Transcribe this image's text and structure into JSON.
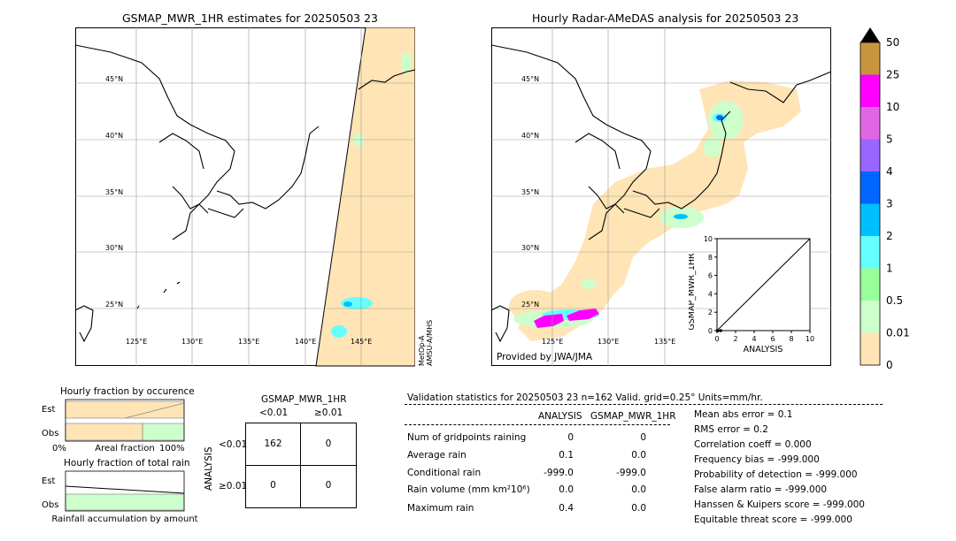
{
  "left_map": {
    "title": "GSMAP_MWR_1HR estimates for 20250503 23",
    "lat_labels": [
      "45°N",
      "40°N",
      "35°N",
      "30°N",
      "25°N"
    ],
    "lon_labels": [
      "125°E",
      "130°E",
      "135°E",
      "140°E",
      "145°E"
    ],
    "satellite_note": "MetOp-A\nAMSU-A/MHS"
  },
  "right_map": {
    "title": "Hourly Radar-AMeDAS analysis for 20250503 23",
    "lat_labels": [
      "45°N",
      "40°N",
      "35°N",
      "30°N",
      "25°N"
    ],
    "lon_labels": [
      "125°E",
      "130°E",
      "135°E"
    ],
    "provider": "Provided by JWA/JMA"
  },
  "colorbar": {
    "labels": [
      "50",
      "25",
      "10",
      "5",
      "4",
      "3",
      "2",
      "1",
      "0.5",
      "0.01",
      "0"
    ],
    "colors": [
      "#c8963c",
      "#ff00ff",
      "#e066e6",
      "#9966ff",
      "#0066ff",
      "#00bfff",
      "#66ffff",
      "#99ff99",
      "#ccffcc",
      "#ffe4b5"
    ]
  },
  "chart_data": [
    {
      "type": "scatter",
      "title": "",
      "xlabel": "ANALYSIS",
      "ylabel": "GSMAP_MWR_1HR",
      "xlim": [
        0,
        10
      ],
      "ylim": [
        0,
        10
      ],
      "xticks": [
        "0",
        "2",
        "4",
        "6",
        "8",
        "10"
      ],
      "yticks": [
        "0",
        "2",
        "4",
        "6",
        "8",
        "10"
      ],
      "points": [
        [
          0.1,
          0.0
        ],
        [
          0.4,
          0.0
        ],
        [
          0.05,
          0.0
        ]
      ],
      "reference_line": [
        [
          0,
          0
        ],
        [
          10,
          10
        ]
      ]
    },
    {
      "type": "bar",
      "title": "Hourly fraction by occurence",
      "categories": [
        "Est",
        "Obs"
      ],
      "xlabel": "Areal fraction",
      "xticks": [
        "0%",
        "100%"
      ],
      "series": [
        {
          "values": [
            1.0,
            0.65
          ],
          "color": "#ffe4b5"
        },
        {
          "values": [
            0.0,
            0.35
          ],
          "color": "#ccffcc"
        }
      ]
    },
    {
      "type": "bar",
      "title": "Hourly fraction of total rain",
      "categories": [
        "Est",
        "Obs"
      ],
      "xlabel": "Rainfall accumulation by amount",
      "series": [
        {
          "values": [
            0.0,
            1.0
          ],
          "color": "#ccffcc"
        }
      ]
    }
  ],
  "contingency": {
    "title": "GSMAP_MWR_1HR",
    "col_headers": [
      "<0.01",
      "≥0.01"
    ],
    "row_headers": [
      "<0.01",
      "≥0.01"
    ],
    "row_axis_label": "ANALYSIS",
    "cells": [
      [
        "162",
        "0"
      ],
      [
        "0",
        "0"
      ]
    ]
  },
  "validation": {
    "header": "Validation statistics for 20250503 23  n=162 Valid. grid=0.25° Units=mm/hr.",
    "col_analysis": "ANALYSIS",
    "col_gsmap": "GSMAP_MWR_1HR",
    "rows": [
      {
        "label": "Num of gridpoints raining",
        "analysis": "0",
        "gsmap": "0"
      },
      {
        "label": "Average rain",
        "analysis": "0.1",
        "gsmap": "0.0"
      },
      {
        "label": "Conditional rain",
        "analysis": "-999.0",
        "gsmap": "-999.0"
      },
      {
        "label": "Rain volume (mm km²10⁶)",
        "analysis": "0.0",
        "gsmap": "0.0"
      },
      {
        "label": "Maximum rain",
        "analysis": "0.4",
        "gsmap": "0.0"
      }
    ],
    "scores": [
      "Mean abs error =    0.1",
      "RMS error =    0.2",
      "Correlation coeff =  0.000",
      "Frequency bias = -999.000",
      "Probability of detection = -999.000",
      "False alarm ratio = -999.000",
      "Hanssen & Kuipers score = -999.000",
      "Equitable threat score = -999.000"
    ]
  }
}
